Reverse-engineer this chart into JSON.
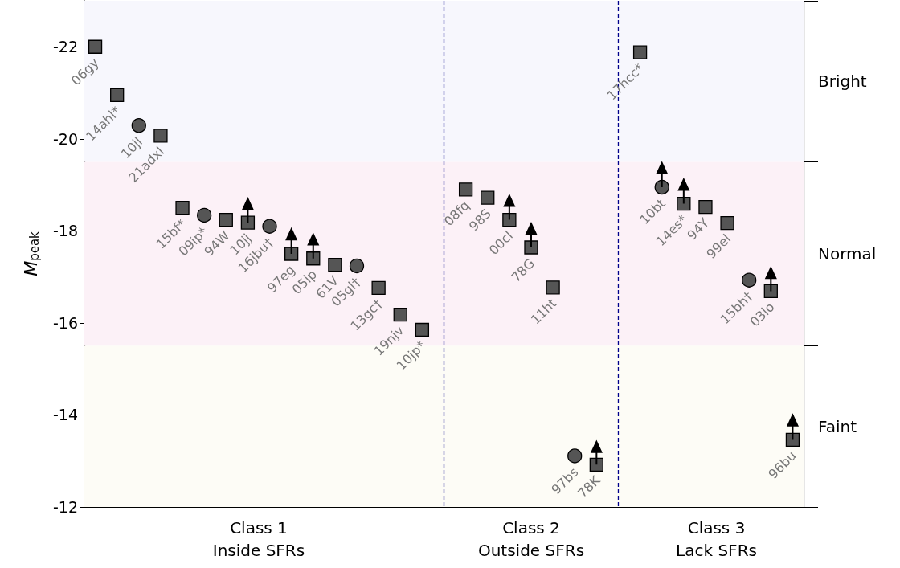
{
  "chart_data": {
    "type": "scatter",
    "ylabel": "M$_{peak}$",
    "categories": [
      "06gy",
      "14ahl*",
      "10jl",
      "21adxl",
      "15bf*",
      "09ip*",
      "94W",
      "10jj",
      "16jbu†",
      "97eg",
      "05ip",
      "61V",
      "05gl†",
      "13gc†",
      "19njv",
      "10jp*",
      null,
      "08fq",
      "98S",
      "00cl",
      "78G",
      "11ht",
      "97bs",
      "78K",
      null,
      "17hcc*",
      "10bt",
      "14es*",
      "94Y",
      "99el",
      "15bh†",
      "03lo",
      "96bu"
    ],
    "ylim": [
      -12,
      -23
    ],
    "yticks": [
      -22,
      -20,
      -18,
      -16,
      -14,
      -12
    ],
    "series": [
      {
        "marker": "square",
        "color": "#555555",
        "values": [
          -22.0,
          -20.95,
          null,
          -20.07,
          -18.5,
          null,
          -18.24,
          -18.18,
          null,
          -17.5,
          -17.4,
          -17.26,
          null,
          -16.76,
          -16.18,
          -15.85,
          null,
          -18.9,
          -18.72,
          -18.24,
          -17.64,
          -16.77,
          null,
          -12.92,
          null,
          -21.88,
          null,
          -18.59,
          -18.52,
          -18.17,
          null,
          -16.69,
          -13.46
        ],
        "errors": [
          null,
          null,
          null,
          null,
          null,
          null,
          null,
          [
            -18.18,
            -18.47
          ],
          null,
          [
            -17.5,
            -17.81
          ],
          [
            -17.4,
            -17.7
          ],
          null,
          null,
          null,
          null,
          null,
          null,
          null,
          null,
          [
            -18.24,
            -18.54
          ],
          [
            -17.64,
            -17.93
          ],
          null,
          null,
          [
            -12.92,
            -13.19
          ],
          null,
          null,
          null,
          [
            -18.59,
            -18.89
          ],
          null,
          null,
          null,
          [
            -16.69,
            -16.97
          ],
          [
            -13.46,
            -13.77
          ]
        ]
      },
      {
        "marker": "circle",
        "color": "#555555",
        "values": [
          null,
          null,
          -20.29,
          null,
          null,
          -18.34,
          null,
          null,
          -18.1,
          null,
          null,
          null,
          -17.24,
          null,
          null,
          null,
          null,
          null,
          null,
          null,
          null,
          null,
          -13.11,
          null,
          null,
          null,
          -18.95,
          null,
          null,
          null,
          -16.93,
          null,
          null
        ],
        "errors": [
          null,
          null,
          null,
          null,
          null,
          null,
          null,
          null,
          null,
          null,
          null,
          null,
          null,
          null,
          null,
          null,
          null,
          null,
          null,
          null,
          null,
          null,
          null,
          null,
          null,
          null,
          [
            -18.95,
            -19.25
          ],
          null,
          null,
          null,
          null,
          null,
          null
        ]
      }
    ],
    "annotations": [
      "Class 1\nInside SFRs",
      "Class 2\nOutside SFRs",
      "Class 3\nLack SFRs"
    ],
    "bands": [
      {
        "axis": "y",
        "from": -23,
        "to": -19.5,
        "label": "Bright",
        "color": "#f7f7fd"
      },
      {
        "axis": "y",
        "from": -19.5,
        "to": -15.5,
        "label": "Normal",
        "color": "#fcf1f7"
      },
      {
        "axis": "y",
        "from": -15.5,
        "to": -12,
        "label": "Faint",
        "color": "#fdfcf6"
      }
    ]
  }
}
